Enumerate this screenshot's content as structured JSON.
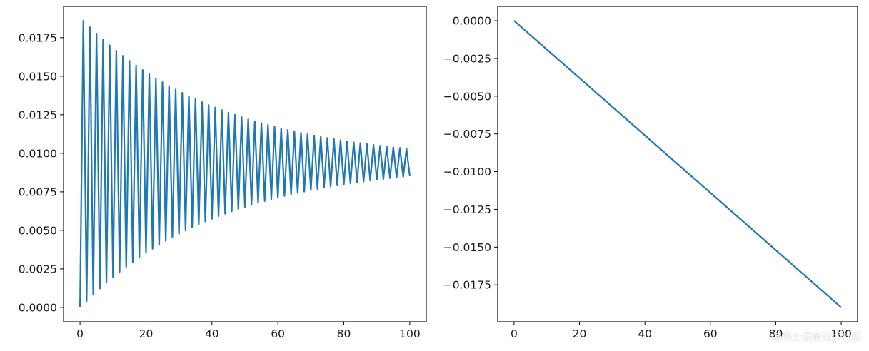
{
  "chart_data": [
    {
      "type": "line",
      "title": "",
      "xlabel": "",
      "ylabel": "",
      "xlim": [
        -5,
        105
      ],
      "ylim": [
        -0.00093,
        0.01953
      ],
      "xticks": [
        0,
        20,
        40,
        60,
        80,
        100
      ],
      "xtick_labels": [
        "0",
        "20",
        "40",
        "60",
        "80",
        "100"
      ],
      "yticks": [
        0.0,
        0.0025,
        0.005,
        0.0075,
        0.01,
        0.0125,
        0.015,
        0.0175
      ],
      "ytick_labels": [
        "0.0000",
        "0.0025",
        "0.0050",
        "0.0075",
        "0.0100",
        "0.0125",
        "0.0150",
        "0.0175"
      ],
      "grid": false,
      "series": [
        {
          "color": "#1f77b4",
          "generator": {
            "kind": "damped_alternating",
            "n_points": 101,
            "x_start": 0,
            "x_step": 1,
            "first_value": 0.0,
            "center": 0.0094,
            "initial_amplitude": 0.0092,
            "decay_per_step": 0.9766
          }
        }
      ]
    },
    {
      "type": "line",
      "title": "",
      "xlabel": "",
      "ylabel": "",
      "xlim": [
        -5,
        105
      ],
      "ylim": [
        -0.01995,
        0.00095
      ],
      "xticks": [
        0,
        20,
        40,
        60,
        80,
        100
      ],
      "xtick_labels": [
        "0",
        "20",
        "40",
        "60",
        "80",
        "100"
      ],
      "yticks": [
        0.0,
        -0.0025,
        -0.005,
        -0.0075,
        -0.01,
        -0.0125,
        -0.015,
        -0.0175
      ],
      "ytick_labels": [
        "0.0000",
        "−0.0025",
        "−0.0050",
        "−0.0075",
        "−0.0100",
        "−0.0125",
        "−0.0150",
        "−0.0175"
      ],
      "grid": false,
      "series": [
        {
          "color": "#1f77b4",
          "x": [
            0,
            100
          ],
          "y": [
            0.0,
            -0.019
          ]
        }
      ]
    }
  ],
  "watermark": "@稀土掘金技术社区"
}
